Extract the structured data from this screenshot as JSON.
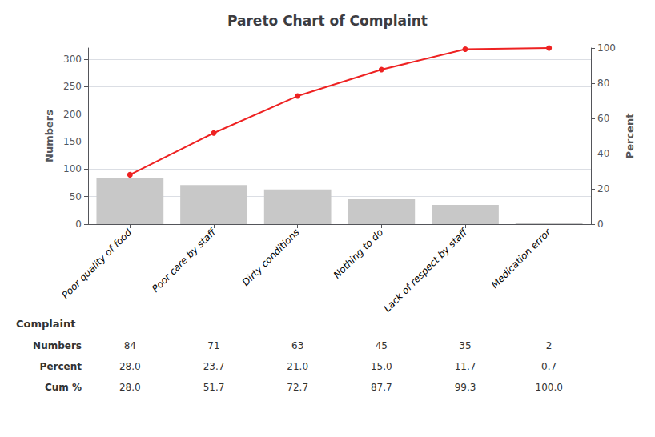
{
  "chart_data": {
    "type": "bar",
    "title": "Pareto Chart of Complaint",
    "categories": [
      "Poor quality of food",
      "Poor care by staff",
      "Dirty conditions",
      "Nothing to do",
      "Lack of respect by staff",
      "Medication error"
    ],
    "series": [
      {
        "type": "bar",
        "color": "#c8c8c8",
        "values": [
          84,
          71,
          63,
          45,
          35,
          2
        ]
      },
      {
        "type": "line",
        "axis": "y2",
        "color": "#ee2222",
        "marker": "circle",
        "values": [
          28.0,
          51.7,
          72.7,
          87.7,
          99.3,
          100.0
        ]
      }
    ],
    "xlabel": "Complaint",
    "ylabel": "Numbers",
    "y2label": "Percent",
    "ylim": [
      0,
      320
    ],
    "yticks": [
      0,
      50,
      100,
      150,
      200,
      250,
      300
    ],
    "y2lim": [
      0,
      100
    ],
    "y2ticks": [
      0,
      20,
      40,
      60,
      80,
      100
    ],
    "grid": true,
    "table": {
      "rows": [
        "Numbers",
        "Percent",
        "Cum %"
      ],
      "cells": [
        [
          "84",
          "71",
          "63",
          "45",
          "35",
          "2"
        ],
        [
          "28.0",
          "23.7",
          "21.0",
          "15.0",
          "11.7",
          "0.7"
        ],
        [
          "28.0",
          "51.7",
          "72.7",
          "87.7",
          "99.3",
          "100.0"
        ]
      ]
    }
  }
}
